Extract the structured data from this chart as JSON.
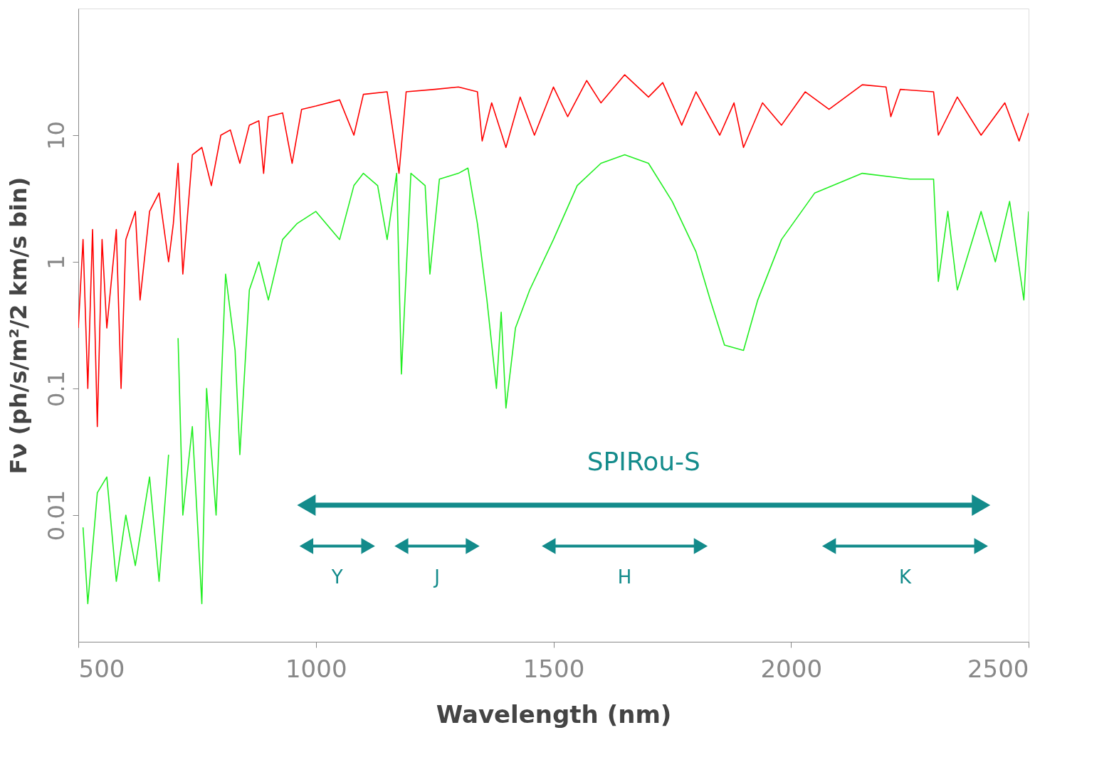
{
  "chart_data": {
    "type": "line",
    "xlabel": "Wavelength (nm)",
    "ylabel": "Fν (ph/s/m²/2 km/s bin)",
    "log": "y",
    "grid": false,
    "xlim": [
      500,
      2500
    ],
    "xticks": [
      500,
      1000,
      1500,
      2000,
      2500
    ],
    "ylim": [
      0.001,
      100
    ],
    "yticks": [
      0.01,
      0.1,
      1,
      10
    ],
    "series": [
      {
        "color": "#ff0000",
        "x": [
          500,
          510,
          520,
          530,
          540,
          550,
          560,
          580,
          590,
          600,
          620,
          630,
          650,
          670,
          690,
          700,
          710,
          720,
          740,
          760,
          780,
          800,
          820,
          840,
          860,
          880,
          890,
          900,
          930,
          950,
          970,
          1000,
          1050,
          1080,
          1100,
          1150,
          1175,
          1190,
          1250,
          1300,
          1340,
          1350,
          1370,
          1400,
          1430,
          1460,
          1500,
          1530,
          1570,
          1600,
          1650,
          1700,
          1730,
          1770,
          1800,
          1850,
          1880,
          1900,
          1940,
          1980,
          2030,
          2080,
          2150,
          2200,
          2210,
          2230,
          2300,
          2310,
          2350,
          2400,
          2450,
          2480,
          2500
        ],
        "values": [
          0.3,
          1.5,
          0.1,
          1.8,
          0.05,
          1.5,
          0.3,
          1.8,
          0.1,
          1.5,
          2.5,
          0.5,
          2.5,
          3.5,
          1.0,
          2,
          6,
          0.8,
          7,
          8,
          4,
          10,
          11,
          6,
          12,
          13,
          5,
          14,
          15,
          6,
          16,
          17,
          19,
          10,
          21,
          22,
          5,
          22,
          23,
          24,
          22,
          9,
          18,
          8,
          20,
          10,
          24,
          14,
          27,
          18,
          30,
          20,
          26,
          12,
          22,
          10,
          18,
          8,
          18,
          12,
          22,
          16,
          25,
          24,
          14,
          23,
          22,
          10,
          20,
          10,
          18,
          9,
          15
        ]
      },
      {
        "color": "#22ee22",
        "x": [
          510,
          520,
          540,
          560,
          580,
          600,
          620,
          650,
          670,
          690,
          700,
          710,
          720,
          740,
          760,
          770,
          790,
          810,
          830,
          840,
          860,
          880,
          900,
          930,
          960,
          1000,
          1050,
          1080,
          1100,
          1130,
          1150,
          1170,
          1180,
          1200,
          1230,
          1240,
          1260,
          1300,
          1320,
          1340,
          1360,
          1380,
          1390,
          1400,
          1420,
          1450,
          1500,
          1550,
          1600,
          1650,
          1700,
          1750,
          1800,
          1830,
          1860,
          1900,
          1930,
          1980,
          2050,
          2150,
          2250,
          2300,
          2310,
          2330,
          2350,
          2400,
          2430,
          2460,
          2490,
          2500
        ],
        "values": [
          0.008,
          0.002,
          0.015,
          0.02,
          0.003,
          0.01,
          0.004,
          0.02,
          0.003,
          0.03,
          null,
          0.25,
          0.01,
          0.05,
          0.002,
          0.1,
          0.01,
          0.8,
          0.2,
          0.03,
          0.6,
          1,
          0.5,
          1.5,
          2,
          2.5,
          1.5,
          4,
          5,
          4,
          1.5,
          5,
          0.13,
          5,
          4,
          0.8,
          4.5,
          5,
          5.5,
          2,
          0.5,
          0.1,
          0.4,
          0.07,
          0.3,
          0.6,
          1.5,
          4,
          6,
          7,
          6,
          3,
          1.2,
          0.5,
          0.22,
          0.2,
          0.5,
          1.5,
          3.5,
          5,
          4.5,
          4.5,
          0.7,
          2.5,
          0.6,
          2.5,
          1,
          3,
          0.5,
          2.5
        ]
      },
      {
        "name": "SPIRou-S",
        "color": "#138b8b",
        "marker": "triangle",
        "x": [
          980,
          2400
        ],
        "values": [
          0.012,
          0.012
        ]
      },
      {
        "name": "Y",
        "color": "#138b8b",
        "marker": "triangle",
        "x": [
          980,
          1110
        ],
        "values": [
          0.0057,
          0.0057
        ]
      },
      {
        "name": "J",
        "color": "#138b8b",
        "marker": "triangle",
        "x": [
          1180,
          1330
        ],
        "values": [
          0.0057,
          0.0057
        ]
      },
      {
        "name": "H",
        "color": "#138b8b",
        "marker": "triangle",
        "x": [
          1490,
          1810
        ],
        "values": [
          0.0057,
          0.0057
        ]
      },
      {
        "name": "K",
        "color": "#138b8b",
        "marker": "triangle",
        "x": [
          2080,
          2400
        ],
        "values": [
          0.0057,
          0.0057
        ]
      }
    ]
  }
}
